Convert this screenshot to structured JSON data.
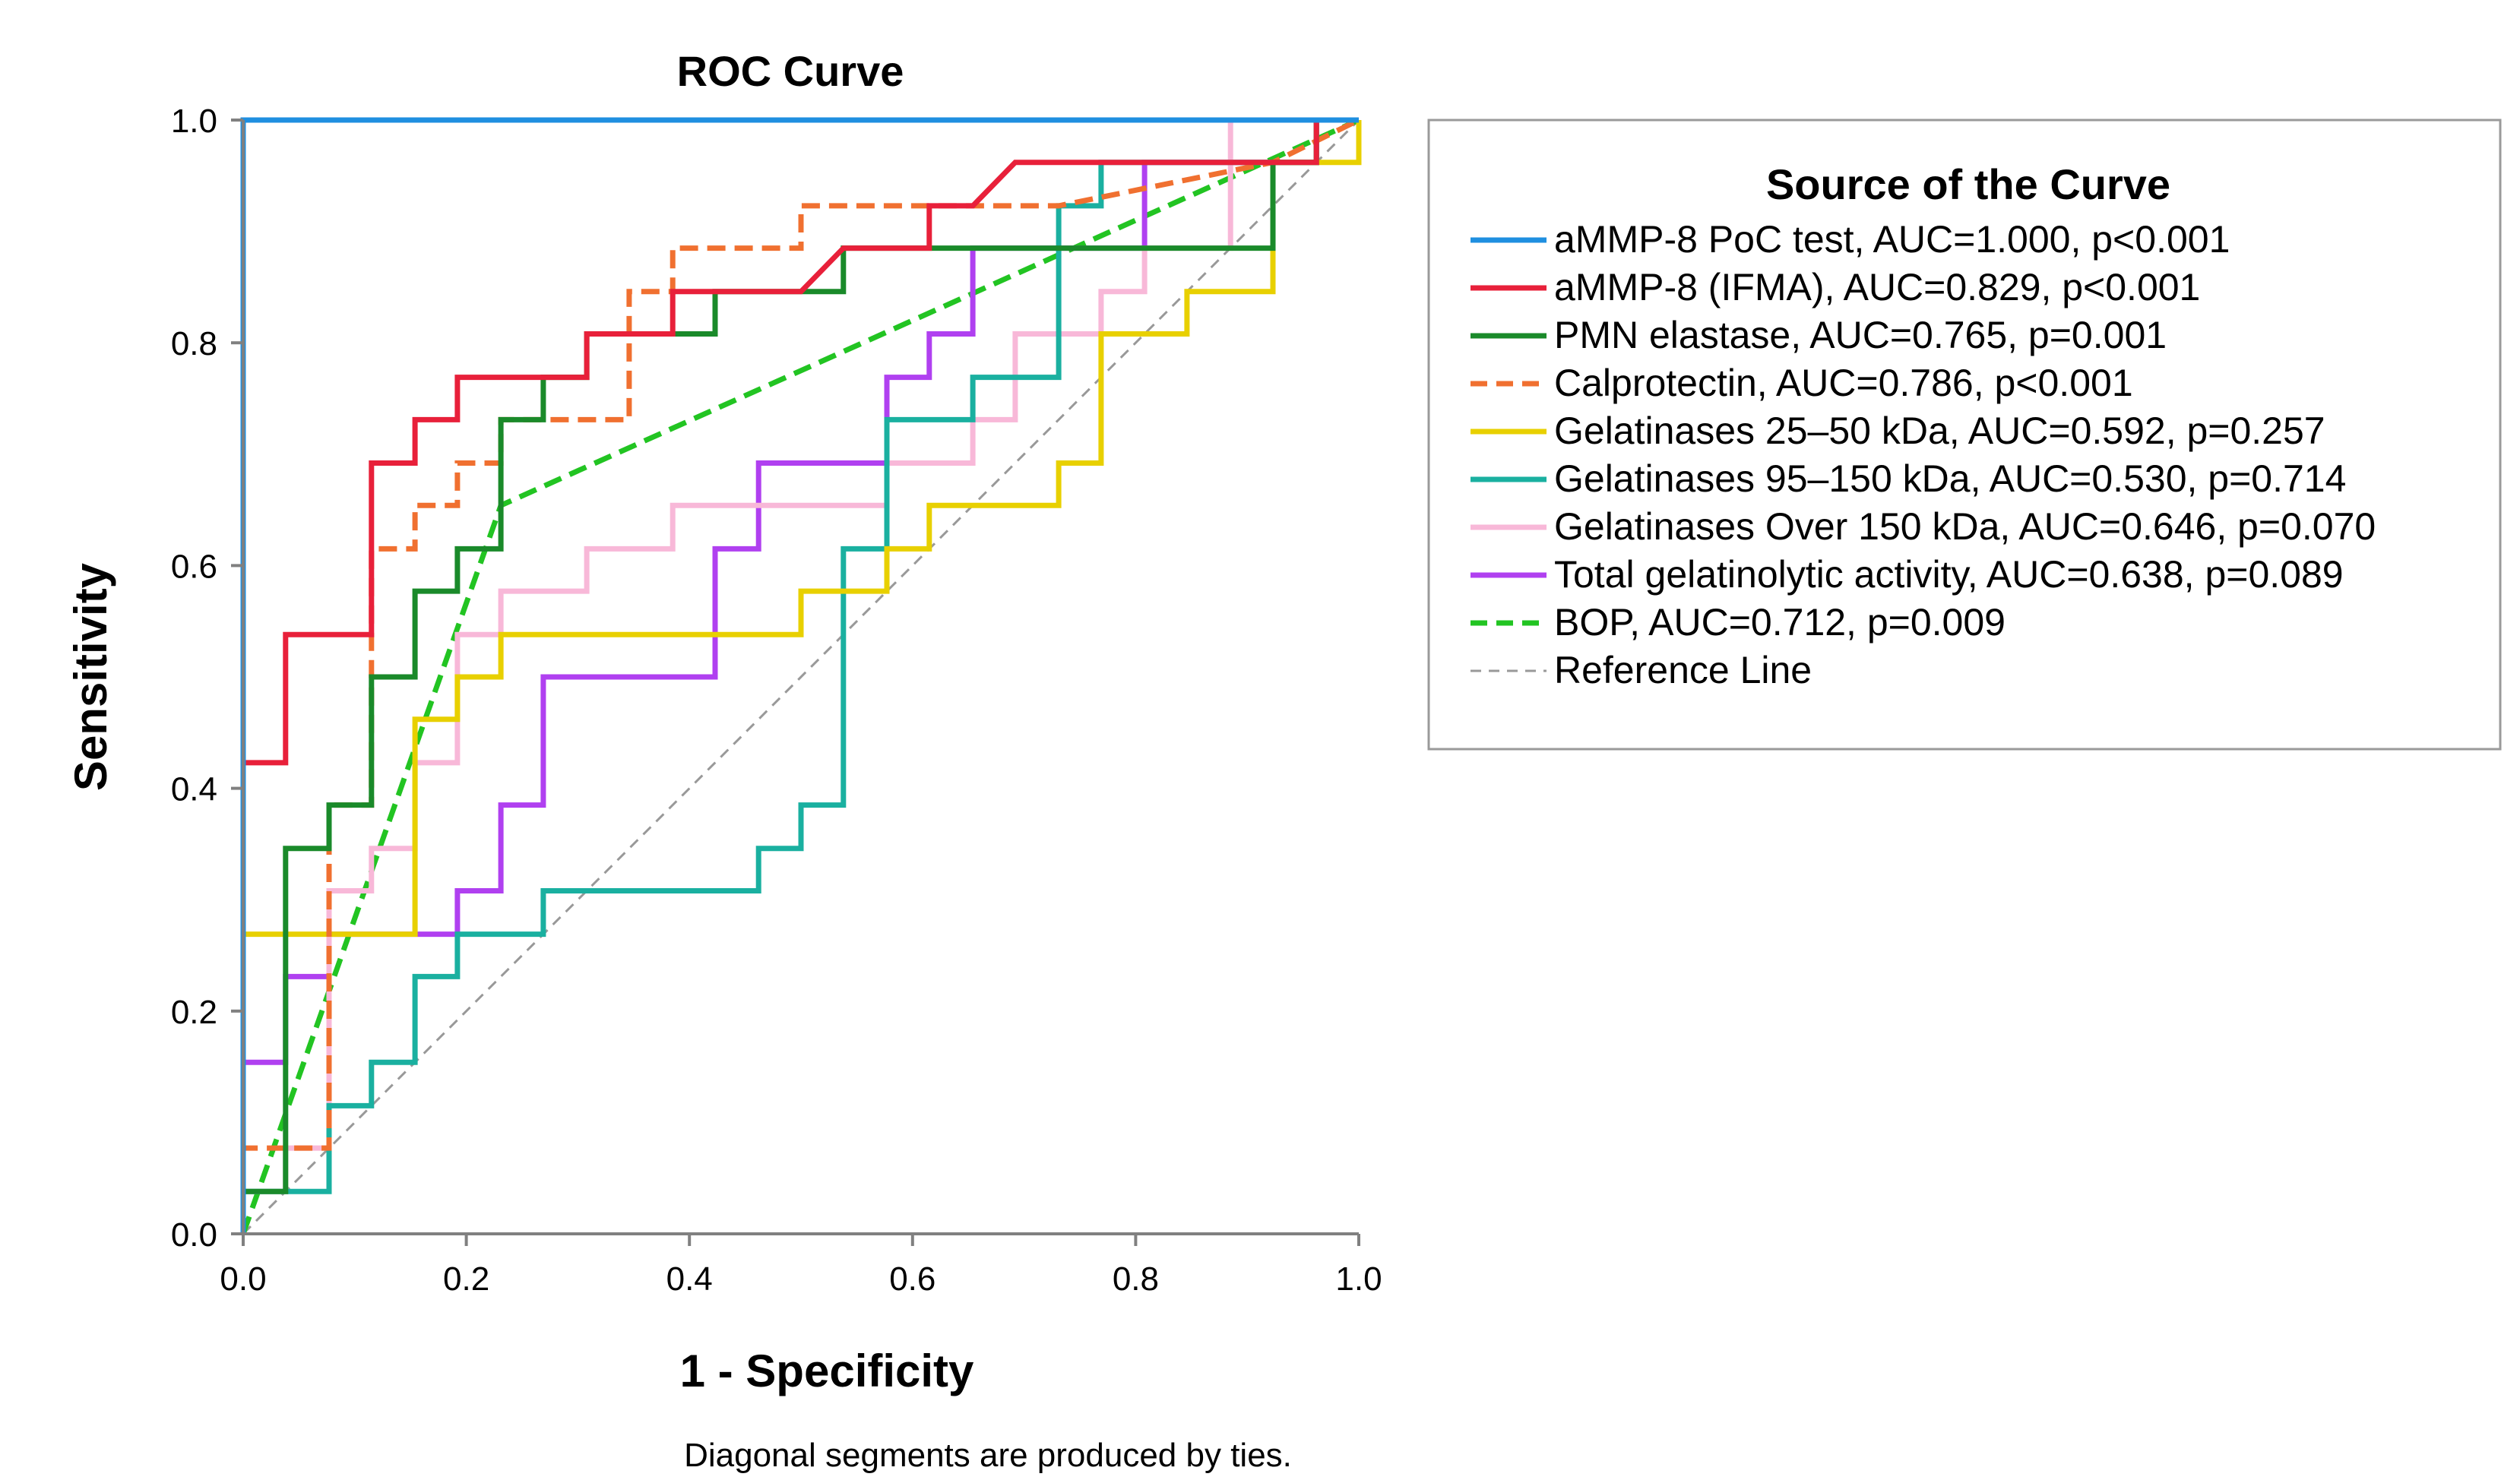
{
  "chart_data": {
    "type": "line",
    "title": "ROC Curve",
    "xlabel": "1 - Specificity",
    "ylabel": "Sensitivity",
    "xlim": [
      0,
      1
    ],
    "ylim": [
      0,
      1
    ],
    "x_ticks": [
      "0.0",
      "0.2",
      "0.4",
      "0.6",
      "0.8",
      "1.0"
    ],
    "y_ticks": [
      "0.0",
      "0.2",
      "0.4",
      "0.6",
      "0.8",
      "1.0"
    ],
    "grid": false,
    "legend_position": "right",
    "legend_title": "Source of the Curve",
    "footnote": "Diagonal segments are produced by ties.",
    "series": [
      {
        "name": "aMMP-8 PoC test, AUC=1.000, p<0.001",
        "color": "#1f8fe0",
        "dash": "solid",
        "points": [
          [
            0,
            0
          ],
          [
            0,
            1
          ],
          [
            0.88,
            1
          ],
          [
            1,
            1
          ]
        ]
      },
      {
        "name": "aMMP-8 (IFMA), AUC=0.829, p<0.001",
        "color": "#e8203a",
        "dash": "solid",
        "points": [
          [
            0,
            0
          ],
          [
            0,
            0.423
          ],
          [
            0.038,
            0.423
          ],
          [
            0.038,
            0.538
          ],
          [
            0.115,
            0.538
          ],
          [
            0.115,
            0.692
          ],
          [
            0.154,
            0.692
          ],
          [
            0.154,
            0.731
          ],
          [
            0.192,
            0.731
          ],
          [
            0.192,
            0.769
          ],
          [
            0.308,
            0.769
          ],
          [
            0.308,
            0.808
          ],
          [
            0.385,
            0.808
          ],
          [
            0.385,
            0.846
          ],
          [
            0.5,
            0.846
          ],
          [
            0.538,
            0.885
          ],
          [
            0.615,
            0.885
          ],
          [
            0.615,
            0.923
          ],
          [
            0.654,
            0.923
          ],
          [
            0.692,
            0.962
          ],
          [
            0.808,
            0.962
          ],
          [
            0.962,
            0.962
          ],
          [
            0.962,
            1
          ],
          [
            1,
            1
          ]
        ]
      },
      {
        "name": "PMN elastase, AUC=0.765, p=0.001",
        "color": "#1a8a2a",
        "dash": "solid",
        "points": [
          [
            0,
            0
          ],
          [
            0,
            0.038
          ],
          [
            0.038,
            0.038
          ],
          [
            0.038,
            0.346
          ],
          [
            0.077,
            0.346
          ],
          [
            0.077,
            0.385
          ],
          [
            0.115,
            0.385
          ],
          [
            0.115,
            0.5
          ],
          [
            0.154,
            0.5
          ],
          [
            0.154,
            0.577
          ],
          [
            0.192,
            0.577
          ],
          [
            0.192,
            0.615
          ],
          [
            0.231,
            0.615
          ],
          [
            0.231,
            0.731
          ],
          [
            0.269,
            0.731
          ],
          [
            0.269,
            0.769
          ],
          [
            0.308,
            0.769
          ],
          [
            0.308,
            0.808
          ],
          [
            0.385,
            0.808
          ],
          [
            0.423,
            0.808
          ],
          [
            0.423,
            0.846
          ],
          [
            0.538,
            0.846
          ],
          [
            0.538,
            0.885
          ],
          [
            0.923,
            0.885
          ],
          [
            0.923,
            0.962
          ],
          [
            0.962,
            0.962
          ],
          [
            0.962,
            1
          ],
          [
            1,
            1
          ]
        ]
      },
      {
        "name": "Calprotectin, AUC=0.786, p<0.001",
        "color": "#f07030",
        "dash": "dashed",
        "points": [
          [
            0,
            0
          ],
          [
            0,
            0.077
          ],
          [
            0.038,
            0.077
          ],
          [
            0.077,
            0.077
          ],
          [
            0.077,
            0.385
          ],
          [
            0.115,
            0.385
          ],
          [
            0.115,
            0.615
          ],
          [
            0.154,
            0.615
          ],
          [
            0.154,
            0.654
          ],
          [
            0.192,
            0.654
          ],
          [
            0.192,
            0.692
          ],
          [
            0.231,
            0.692
          ],
          [
            0.231,
            0.731
          ],
          [
            0.346,
            0.731
          ],
          [
            0.346,
            0.846
          ],
          [
            0.385,
            0.846
          ],
          [
            0.385,
            0.885
          ],
          [
            0.5,
            0.885
          ],
          [
            0.5,
            0.923
          ],
          [
            0.731,
            0.923
          ],
          [
            0.923,
            0.962
          ],
          [
            1,
            1
          ]
        ]
      },
      {
        "name": "Gelatinases 25–50 kDa, AUC=0.592, p=0.257",
        "color": "#e8d000",
        "dash": "solid",
        "points": [
          [
            0,
            0
          ],
          [
            0,
            0.269
          ],
          [
            0.154,
            0.269
          ],
          [
            0.154,
            0.462
          ],
          [
            0.192,
            0.462
          ],
          [
            0.192,
            0.5
          ],
          [
            0.231,
            0.5
          ],
          [
            0.231,
            0.538
          ],
          [
            0.462,
            0.538
          ],
          [
            0.5,
            0.538
          ],
          [
            0.5,
            0.577
          ],
          [
            0.577,
            0.577
          ],
          [
            0.577,
            0.615
          ],
          [
            0.615,
            0.615
          ],
          [
            0.615,
            0.654
          ],
          [
            0.731,
            0.654
          ],
          [
            0.731,
            0.692
          ],
          [
            0.769,
            0.692
          ],
          [
            0.769,
            0.808
          ],
          [
            0.846,
            0.808
          ],
          [
            0.846,
            0.846
          ],
          [
            0.923,
            0.846
          ],
          [
            0.923,
            0.962
          ],
          [
            1,
            0.962
          ],
          [
            1,
            1
          ]
        ]
      },
      {
        "name": "Gelatinases 95–150 kDa, AUC=0.530, p=0.714",
        "color": "#1ab0a0",
        "dash": "solid",
        "points": [
          [
            0,
            0
          ],
          [
            0,
            0.038
          ],
          [
            0.077,
            0.038
          ],
          [
            0.077,
            0.115
          ],
          [
            0.115,
            0.115
          ],
          [
            0.115,
            0.154
          ],
          [
            0.154,
            0.154
          ],
          [
            0.154,
            0.231
          ],
          [
            0.192,
            0.231
          ],
          [
            0.192,
            0.269
          ],
          [
            0.269,
            0.269
          ],
          [
            0.269,
            0.308
          ],
          [
            0.462,
            0.308
          ],
          [
            0.462,
            0.346
          ],
          [
            0.5,
            0.346
          ],
          [
            0.5,
            0.385
          ],
          [
            0.538,
            0.385
          ],
          [
            0.538,
            0.615
          ],
          [
            0.577,
            0.615
          ],
          [
            0.577,
            0.731
          ],
          [
            0.654,
            0.731
          ],
          [
            0.654,
            0.769
          ],
          [
            0.731,
            0.769
          ],
          [
            0.731,
            0.923
          ],
          [
            0.769,
            0.923
          ],
          [
            0.769,
            0.962
          ],
          [
            0.962,
            0.962
          ],
          [
            0.962,
            1
          ],
          [
            1,
            1
          ]
        ]
      },
      {
        "name": "Gelatinases Over 150 kDa, AUC=0.646, p=0.070",
        "color": "#f8b8d8",
        "dash": "solid",
        "points": [
          [
            0,
            0
          ],
          [
            0,
            0.038
          ],
          [
            0.038,
            0.038
          ],
          [
            0.038,
            0.077
          ],
          [
            0.077,
            0.077
          ],
          [
            0.077,
            0.308
          ],
          [
            0.115,
            0.308
          ],
          [
            0.115,
            0.346
          ],
          [
            0.154,
            0.346
          ],
          [
            0.154,
            0.423
          ],
          [
            0.192,
            0.423
          ],
          [
            0.192,
            0.538
          ],
          [
            0.231,
            0.538
          ],
          [
            0.231,
            0.577
          ],
          [
            0.308,
            0.577
          ],
          [
            0.308,
            0.615
          ],
          [
            0.385,
            0.615
          ],
          [
            0.385,
            0.654
          ],
          [
            0.577,
            0.654
          ],
          [
            0.577,
            0.692
          ],
          [
            0.654,
            0.692
          ],
          [
            0.654,
            0.731
          ],
          [
            0.692,
            0.731
          ],
          [
            0.692,
            0.808
          ],
          [
            0.769,
            0.808
          ],
          [
            0.769,
            0.846
          ],
          [
            0.808,
            0.846
          ],
          [
            0.808,
            0.885
          ],
          [
            0.885,
            0.885
          ],
          [
            0.885,
            1
          ],
          [
            1,
            1
          ]
        ]
      },
      {
        "name": "Total gelatinolytic activity, AUC=0.638, p=0.089",
        "color": "#b040f0",
        "dash": "solid",
        "points": [
          [
            0,
            0
          ],
          [
            0,
            0.154
          ],
          [
            0.038,
            0.154
          ],
          [
            0.038,
            0.231
          ],
          [
            0.077,
            0.231
          ],
          [
            0.077,
            0.269
          ],
          [
            0.192,
            0.269
          ],
          [
            0.192,
            0.308
          ],
          [
            0.231,
            0.308
          ],
          [
            0.231,
            0.385
          ],
          [
            0.269,
            0.385
          ],
          [
            0.269,
            0.5
          ],
          [
            0.423,
            0.5
          ],
          [
            0.423,
            0.615
          ],
          [
            0.462,
            0.615
          ],
          [
            0.462,
            0.692
          ],
          [
            0.577,
            0.692
          ],
          [
            0.577,
            0.769
          ],
          [
            0.615,
            0.769
          ],
          [
            0.615,
            0.808
          ],
          [
            0.654,
            0.808
          ],
          [
            0.654,
            0.885
          ],
          [
            0.808,
            0.885
          ],
          [
            0.808,
            0.962
          ],
          [
            0.962,
            0.962
          ],
          [
            0.962,
            1
          ],
          [
            1,
            1
          ]
        ]
      },
      {
        "name": "BOP, AUC=0.712, p=0.009",
        "color": "#22c422",
        "dash": "dashed",
        "points": [
          [
            0,
            0
          ],
          [
            0.231,
            0.654
          ],
          [
            1,
            1
          ]
        ]
      },
      {
        "name": "Reference Line",
        "color": "#999999",
        "dash": "dashed-thin",
        "points": [
          [
            0,
            0
          ],
          [
            1,
            1
          ]
        ]
      }
    ]
  }
}
